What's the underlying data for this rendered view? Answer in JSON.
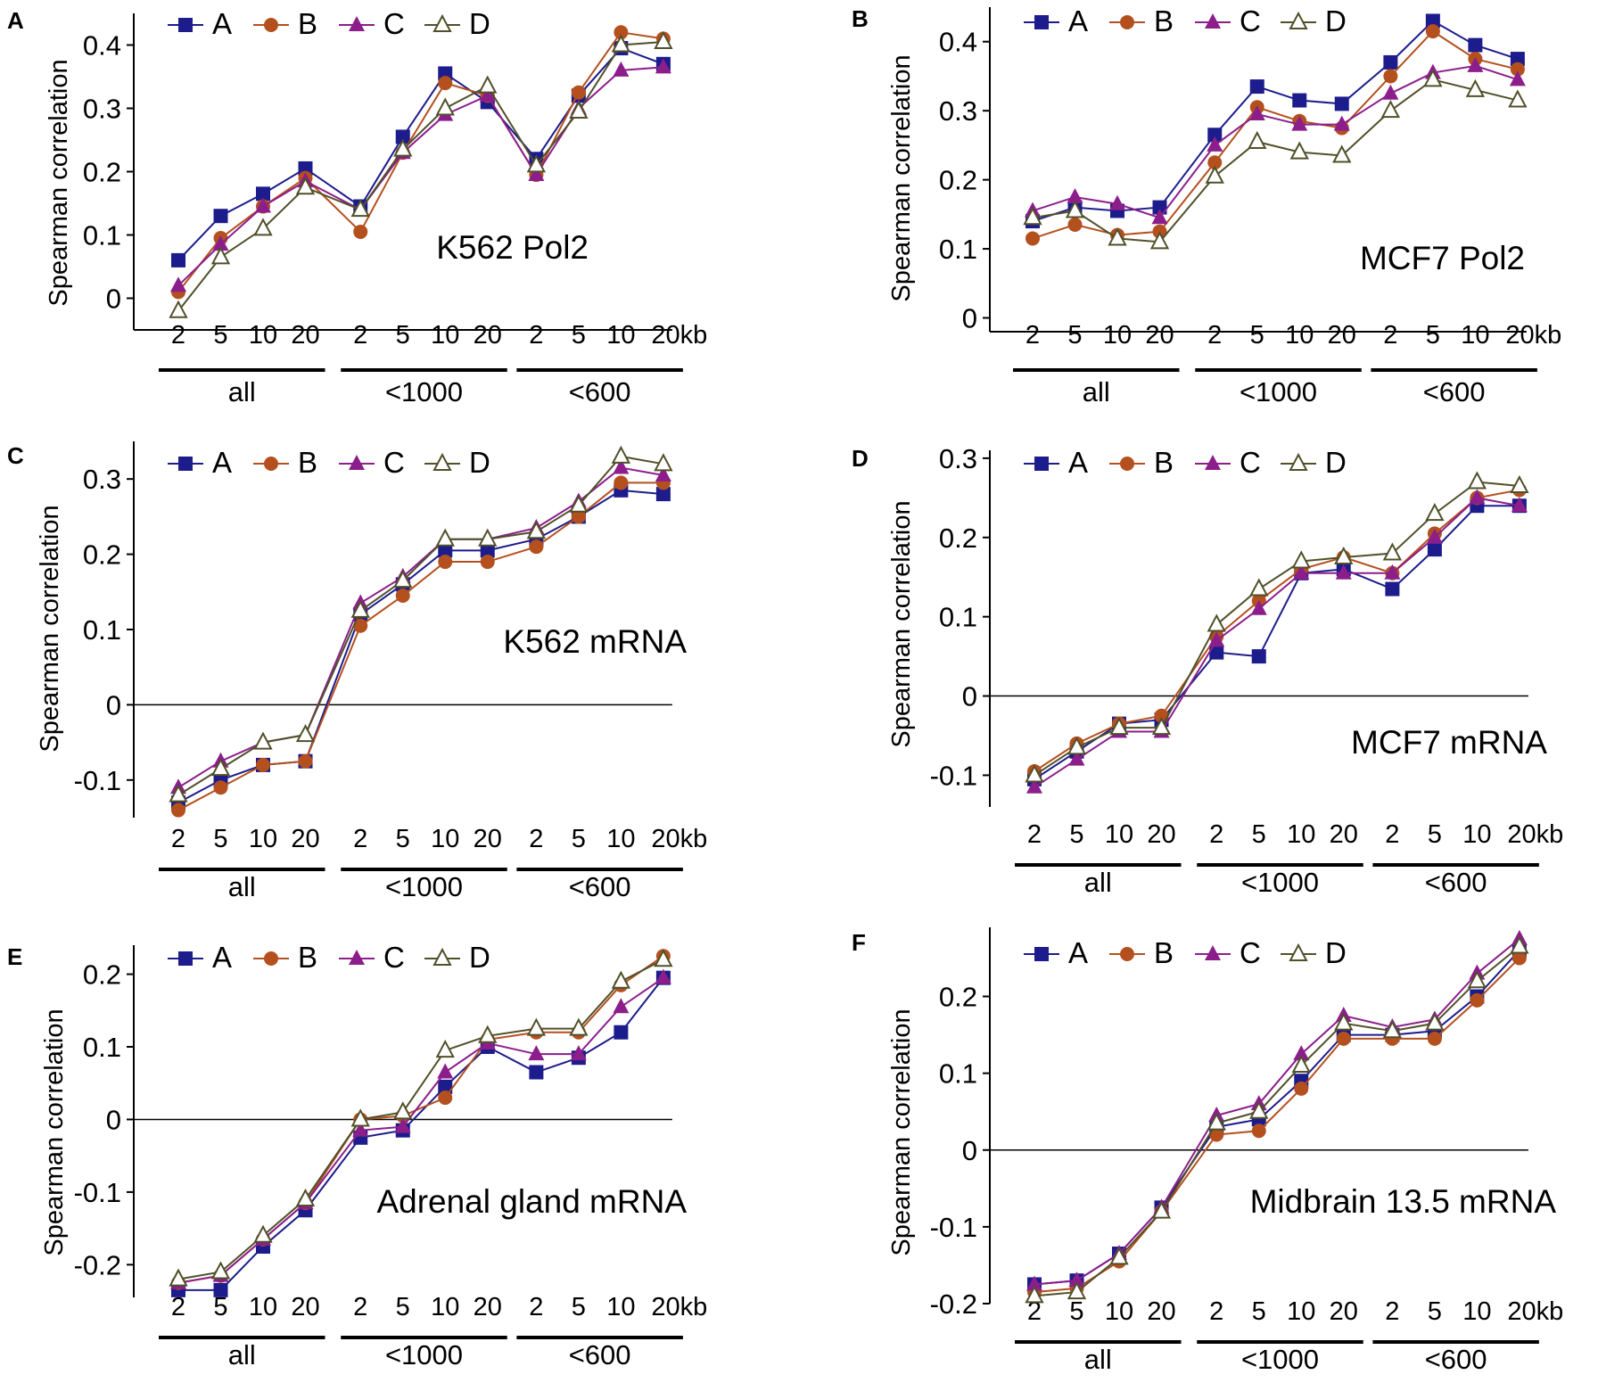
{
  "colors": {
    "A": "#1c1c8c",
    "B": "#b4501e",
    "C": "#8c1e8c",
    "D": "#50502a",
    "axis": "#000000"
  },
  "legend": [
    "A",
    "B",
    "C",
    "D"
  ],
  "group_labels": [
    "all",
    "<1000",
    "<600"
  ],
  "ylabel": "Spearman correlation",
  "chart_data": [
    {
      "type": "line",
      "panel": "A",
      "title": "K562 Pol2",
      "xlabel": "",
      "ylabel": "Spearman correlation",
      "categories": [
        "2",
        "5",
        "10",
        "20",
        "2",
        "5",
        "10",
        "20",
        "2",
        "5",
        "10",
        "20kb"
      ],
      "groups": [
        "all",
        "<1000",
        "<600"
      ],
      "yticks": [
        "0",
        "0.1",
        "0.2",
        "0.3",
        "0.4"
      ],
      "ylim": [
        -0.05,
        0.45
      ],
      "zero_line": false,
      "series": [
        {
          "name": "A",
          "marker": "square",
          "values": [
            0.06,
            0.13,
            0.165,
            0.205,
            0.145,
            0.255,
            0.355,
            0.31,
            0.22,
            0.32,
            0.395,
            0.37
          ]
        },
        {
          "name": "B",
          "marker": "circle",
          "values": [
            0.01,
            0.095,
            0.145,
            0.19,
            0.105,
            0.23,
            0.34,
            0.32,
            0.195,
            0.325,
            0.42,
            0.41
          ]
        },
        {
          "name": "C",
          "marker": "triangle",
          "values": [
            0.02,
            0.085,
            0.145,
            0.185,
            0.14,
            0.23,
            0.29,
            0.32,
            0.195,
            0.3,
            0.36,
            0.365
          ]
        },
        {
          "name": "D",
          "marker": "triangle-open",
          "values": [
            -0.02,
            0.065,
            0.11,
            0.175,
            0.14,
            0.235,
            0.3,
            0.335,
            0.21,
            0.295,
            0.4,
            0.405
          ]
        }
      ]
    },
    {
      "type": "line",
      "panel": "B",
      "title": "MCF7 Pol2",
      "xlabel": "",
      "ylabel": "Spearman correlation",
      "categories": [
        "2",
        "5",
        "10",
        "20",
        "2",
        "5",
        "10",
        "20",
        "2",
        "5",
        "10",
        "20kb"
      ],
      "groups": [
        "all",
        "<1000",
        "<600"
      ],
      "yticks": [
        "0",
        "0.1",
        "0.2",
        "0.3",
        "0.4"
      ],
      "ylim": [
        -0.02,
        0.45
      ],
      "zero_line": false,
      "series": [
        {
          "name": "A",
          "marker": "square",
          "values": [
            0.14,
            0.16,
            0.155,
            0.16,
            0.265,
            0.335,
            0.315,
            0.31,
            0.37,
            0.43,
            0.395,
            0.375
          ]
        },
        {
          "name": "B",
          "marker": "circle",
          "values": [
            0.115,
            0.135,
            0.12,
            0.125,
            0.225,
            0.305,
            0.285,
            0.275,
            0.35,
            0.415,
            0.375,
            0.36
          ]
        },
        {
          "name": "C",
          "marker": "triangle",
          "values": [
            0.155,
            0.175,
            0.165,
            0.145,
            0.25,
            0.295,
            0.28,
            0.28,
            0.325,
            0.355,
            0.365,
            0.345
          ]
        },
        {
          "name": "D",
          "marker": "triangle-open",
          "values": [
            0.145,
            0.155,
            0.115,
            0.11,
            0.205,
            0.255,
            0.24,
            0.235,
            0.3,
            0.345,
            0.33,
            0.315
          ]
        }
      ]
    },
    {
      "type": "line",
      "panel": "C",
      "title": "K562 mRNA",
      "xlabel": "",
      "ylabel": "Spearman correlation",
      "categories": [
        "2",
        "5",
        "10",
        "20",
        "2",
        "5",
        "10",
        "20",
        "2",
        "5",
        "10",
        "20kb"
      ],
      "groups": [
        "all",
        "<1000",
        "<600"
      ],
      "yticks": [
        "-0.1",
        "0",
        "0.1",
        "0.2",
        "0.3"
      ],
      "ylim": [
        -0.15,
        0.35
      ],
      "zero_line": true,
      "series": [
        {
          "name": "A",
          "marker": "square",
          "values": [
            -0.13,
            -0.1,
            -0.08,
            -0.075,
            0.12,
            0.16,
            0.205,
            0.205,
            0.22,
            0.25,
            0.285,
            0.28
          ]
        },
        {
          "name": "B",
          "marker": "circle",
          "values": [
            -0.14,
            -0.11,
            -0.08,
            -0.075,
            0.105,
            0.145,
            0.19,
            0.19,
            0.21,
            0.25,
            0.295,
            0.295
          ]
        },
        {
          "name": "C",
          "marker": "triangle",
          "values": [
            -0.11,
            -0.075,
            -0.05,
            -0.04,
            0.135,
            0.17,
            0.22,
            0.22,
            0.235,
            0.27,
            0.315,
            0.305
          ]
        },
        {
          "name": "D",
          "marker": "triangle-open",
          "values": [
            -0.12,
            -0.085,
            -0.05,
            -0.04,
            0.125,
            0.165,
            0.22,
            0.22,
            0.23,
            0.265,
            0.33,
            0.32
          ]
        }
      ]
    },
    {
      "type": "line",
      "panel": "D",
      "title": "MCF7 mRNA",
      "xlabel": "",
      "ylabel": "Spearman correlation",
      "categories": [
        "2",
        "5",
        "10",
        "20",
        "2",
        "5",
        "10",
        "20",
        "2",
        "5",
        "10",
        "20kb"
      ],
      "groups": [
        "all",
        "<1000",
        "<600"
      ],
      "yticks": [
        "-0.1",
        "0",
        "0.1",
        "0.2",
        "0.3"
      ],
      "ylim": [
        -0.14,
        0.31
      ],
      "zero_line": true,
      "series": [
        {
          "name": "A",
          "marker": "square",
          "values": [
            -0.105,
            -0.07,
            -0.035,
            -0.03,
            0.055,
            0.05,
            0.155,
            0.16,
            0.135,
            0.185,
            0.24,
            0.24
          ]
        },
        {
          "name": "B",
          "marker": "circle",
          "values": [
            -0.095,
            -0.06,
            -0.035,
            -0.025,
            0.075,
            0.12,
            0.16,
            0.175,
            0.155,
            0.205,
            0.25,
            0.26
          ]
        },
        {
          "name": "C",
          "marker": "triangle",
          "values": [
            -0.115,
            -0.08,
            -0.045,
            -0.045,
            0.07,
            0.11,
            0.155,
            0.155,
            0.155,
            0.2,
            0.25,
            0.24
          ]
        },
        {
          "name": "D",
          "marker": "triangle-open",
          "values": [
            -0.1,
            -0.065,
            -0.04,
            -0.04,
            0.09,
            0.135,
            0.17,
            0.175,
            0.18,
            0.23,
            0.27,
            0.265
          ]
        }
      ]
    },
    {
      "type": "line",
      "panel": "E",
      "title": "Adrenal gland mRNA",
      "xlabel": "",
      "ylabel": "Spearman correlation",
      "categories": [
        "2",
        "5",
        "10",
        "20",
        "2",
        "5",
        "10",
        "20",
        "2",
        "5",
        "10",
        "20kb"
      ],
      "groups": [
        "all",
        "<1000",
        "<600"
      ],
      "yticks": [
        "-0.2",
        "-0.1",
        "0",
        "0.1",
        "0.2"
      ],
      "ylim": [
        -0.245,
        0.24
      ],
      "zero_line": true,
      "series": [
        {
          "name": "A",
          "marker": "square",
          "values": [
            -0.235,
            -0.235,
            -0.175,
            -0.125,
            -0.025,
            -0.015,
            0.045,
            0.1,
            0.065,
            0.085,
            0.12,
            0.195
          ]
        },
        {
          "name": "B",
          "marker": "circle",
          "values": [
            -0.225,
            -0.215,
            -0.165,
            -0.115,
            0.0,
            0.005,
            0.03,
            0.11,
            0.12,
            0.12,
            0.185,
            0.225
          ]
        },
        {
          "name": "C",
          "marker": "triangle",
          "values": [
            -0.225,
            -0.215,
            -0.165,
            -0.115,
            -0.015,
            -0.01,
            0.065,
            0.105,
            0.09,
            0.09,
            0.155,
            0.195
          ]
        },
        {
          "name": "D",
          "marker": "triangle-open",
          "values": [
            -0.22,
            -0.21,
            -0.16,
            -0.11,
            0.0,
            0.01,
            0.095,
            0.115,
            0.125,
            0.125,
            0.19,
            0.22
          ]
        }
      ]
    },
    {
      "type": "line",
      "panel": "F",
      "title": "Midbrain 13.5 mRNA",
      "xlabel": "",
      "ylabel": "Spearman correlation",
      "categories": [
        "2",
        "5",
        "10",
        "20",
        "2",
        "5",
        "10",
        "20",
        "2",
        "5",
        "10",
        "20kb"
      ],
      "groups": [
        "all",
        "<1000",
        "<600"
      ],
      "yticks": [
        "-0.2",
        "-0.1",
        "0",
        "0.1",
        "0.2"
      ],
      "ylim": [
        -0.2,
        0.29
      ],
      "zero_line": true,
      "series": [
        {
          "name": "A",
          "marker": "square",
          "values": [
            -0.175,
            -0.17,
            -0.135,
            -0.075,
            0.03,
            0.04,
            0.09,
            0.15,
            0.15,
            0.155,
            0.2,
            0.26
          ]
        },
        {
          "name": "B",
          "marker": "circle",
          "values": [
            -0.185,
            -0.18,
            -0.145,
            -0.08,
            0.02,
            0.025,
            0.08,
            0.145,
            0.145,
            0.145,
            0.195,
            0.25
          ]
        },
        {
          "name": "C",
          "marker": "triangle",
          "values": [
            -0.175,
            -0.17,
            -0.135,
            -0.075,
            0.045,
            0.06,
            0.125,
            0.175,
            0.16,
            0.17,
            0.23,
            0.275
          ]
        },
        {
          "name": "D",
          "marker": "triangle-open",
          "values": [
            -0.19,
            -0.185,
            -0.14,
            -0.08,
            0.035,
            0.05,
            0.11,
            0.165,
            0.155,
            0.165,
            0.22,
            0.265
          ]
        }
      ]
    }
  ]
}
